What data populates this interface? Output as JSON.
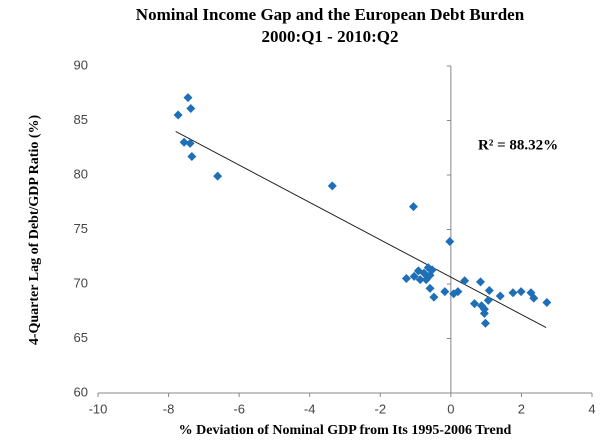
{
  "chart_data": {
    "type": "scatter",
    "title": "Nominal Income Gap and the European Debt Burden",
    "subtitle": "2000:Q1 - 2010:Q2",
    "x_label": "% Deviation of Nominal GDP from Its 1995-2006 Trend",
    "y_label": "4-Quarter Lag of Debt/GDP Ratio (%)",
    "annotation": "R² = 88.32%",
    "color": "#1f6fb8",
    "xlim": [
      -10,
      4
    ],
    "ylim": [
      60,
      90
    ],
    "xticks": [
      -10,
      -8,
      -6,
      -4,
      -2,
      0,
      2,
      4
    ],
    "yticks": [
      60,
      65,
      70,
      75,
      80,
      85,
      90
    ],
    "x": [
      -7.73,
      -7.45,
      -7.37,
      -7.56,
      -7.39,
      -7.34,
      -6.61,
      -3.36,
      -1.06,
      -0.03,
      -1.26,
      -1.04,
      -0.92,
      -0.87,
      -0.76,
      -0.64,
      -0.59,
      -0.53,
      -0.7,
      -0.59,
      -0.48,
      -0.17,
      0.08,
      0.2,
      0.39,
      0.67,
      0.87,
      0.84,
      0.95,
      0.98,
      1.06,
      1.09,
      1.4,
      1.76,
      1.99,
      2.27,
      2.35,
      2.72,
      0.95
    ],
    "y": [
      85.5,
      87.1,
      86.1,
      83.0,
      82.9,
      81.7,
      79.9,
      79.0,
      77.1,
      73.9,
      70.5,
      70.7,
      71.2,
      70.4,
      71.0,
      71.5,
      70.8,
      71.3,
      70.4,
      69.6,
      68.8,
      69.3,
      69.1,
      69.3,
      70.3,
      68.2,
      68.0,
      70.2,
      67.3,
      66.4,
      68.5,
      69.4,
      68.9,
      69.2,
      69.3,
      69.2,
      68.7,
      68.3,
      67.7
    ],
    "trendline": {
      "x": [
        -7.8,
        2.7
      ],
      "y": [
        84.0,
        66.0
      ]
    }
  }
}
